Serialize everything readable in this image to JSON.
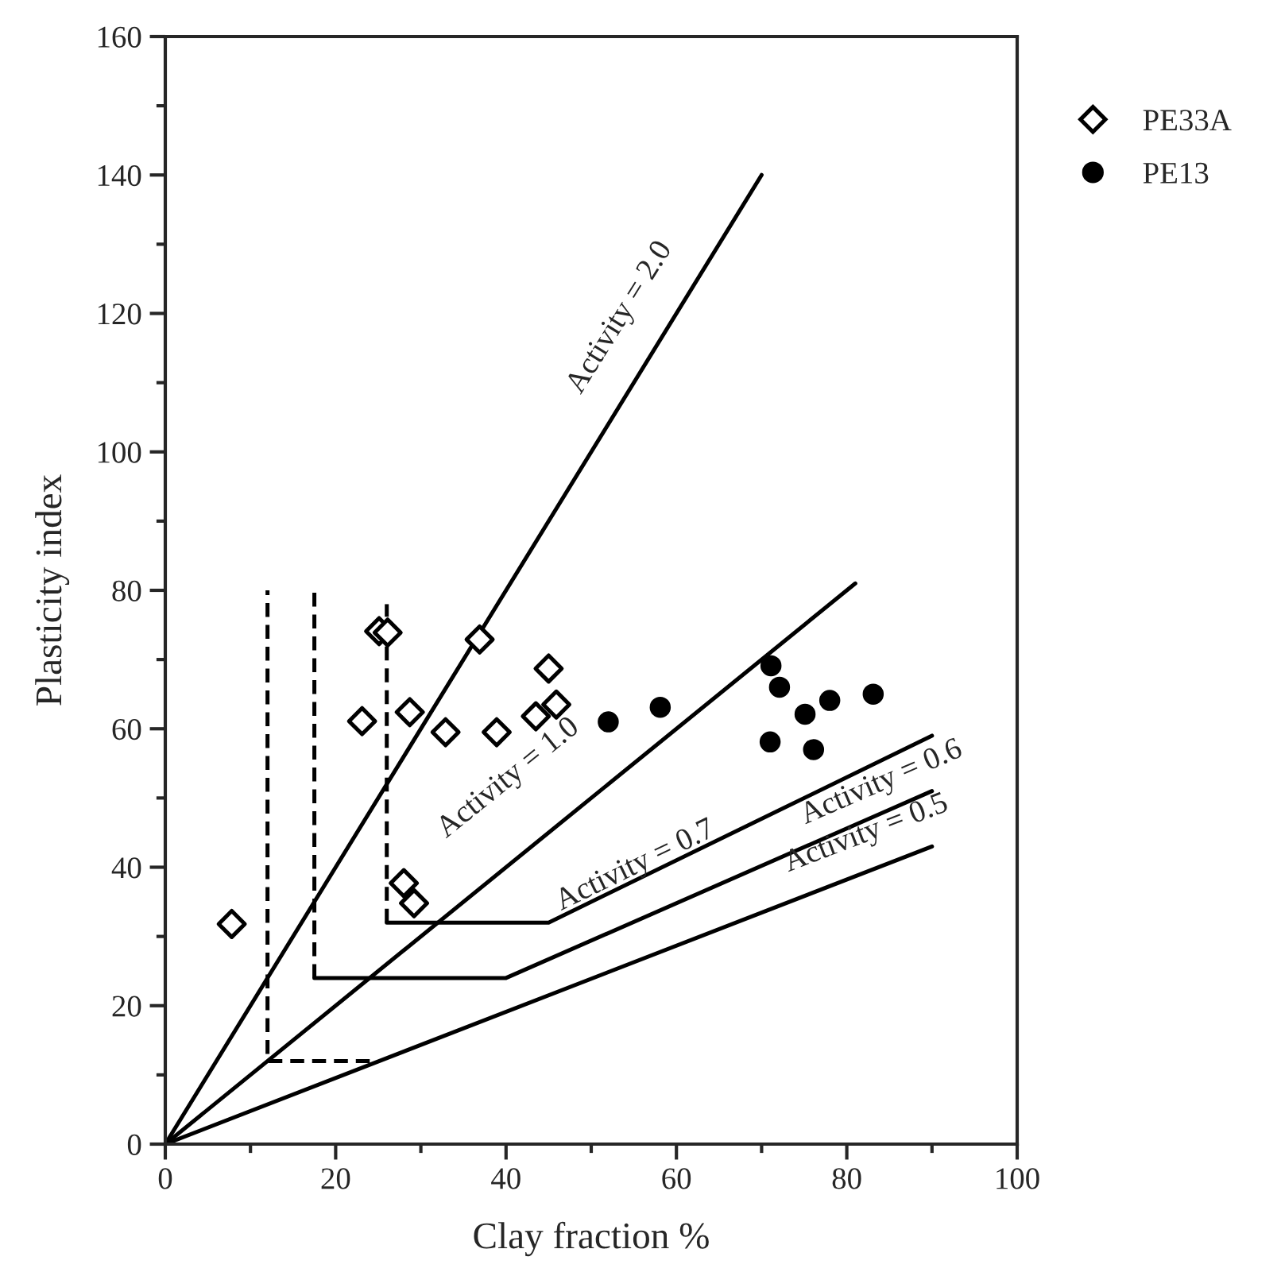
{
  "chart_data": {
    "type": "scatter",
    "xlabel": "Clay fraction %",
    "ylabel": "Plasticity index",
    "xlim": [
      0,
      100
    ],
    "ylim": [
      0,
      160
    ],
    "xticks": [
      0,
      20,
      40,
      60,
      80,
      100
    ],
    "yticks": [
      0,
      20,
      40,
      60,
      80,
      100,
      120,
      140,
      160
    ],
    "grid": false,
    "legend": "top right",
    "series": [
      {
        "name": "PE33A",
        "marker": "diamond",
        "color": "#000000",
        "x": [
          7.8,
          23.1,
          25.1,
          26.1,
          28.7,
          32.9,
          36.9,
          38.9,
          43.5,
          45.0,
          45.9,
          28.0,
          29.2
        ],
        "values": [
          31.8,
          61.1,
          74.1,
          73.9,
          62.4,
          59.5,
          72.9,
          59.5,
          61.8,
          68.7,
          63.5,
          37.7,
          34.8
        ]
      },
      {
        "name": "PE13",
        "marker": "circle",
        "color": "#000000",
        "x": [
          52.0,
          58.1,
          71.1,
          72.1,
          75.1,
          78.0,
          83.1,
          71.0,
          76.1
        ],
        "values": [
          61.0,
          63.1,
          69.1,
          66.0,
          62.1,
          64.1,
          65.0,
          58.1,
          57.0
        ]
      },
      {
        "type": "line",
        "color": "#000000",
        "line_style": "solid",
        "x": [
          0,
          70
        ],
        "values": [
          0,
          140
        ]
      },
      {
        "type": "line",
        "color": "#000000",
        "line_style": "solid",
        "x": [
          0,
          81
        ],
        "values": [
          0,
          81
        ]
      },
      {
        "type": "line",
        "color": "#000000",
        "line_style": "solid",
        "x": [
          26,
          45,
          90
        ],
        "values": [
          32,
          32,
          59
        ]
      },
      {
        "type": "line",
        "color": "#000000",
        "line_style": "solid",
        "x": [
          17.5,
          40,
          90
        ],
        "values": [
          24,
          24,
          51
        ]
      },
      {
        "type": "line",
        "color": "#000000",
        "line_style": "solid",
        "x": [
          0,
          90
        ],
        "values": [
          0,
          43
        ]
      },
      {
        "type": "line",
        "color": "#000000",
        "line_style": "dashed",
        "x": [
          24,
          12,
          12
        ],
        "values": [
          12,
          12,
          80
        ]
      },
      {
        "type": "line",
        "color": "#000000",
        "line_style": "dashed",
        "x": [
          17.5,
          17.5
        ],
        "values": [
          24,
          80
        ]
      },
      {
        "type": "line",
        "color": "#000000",
        "line_style": "dashed",
        "x": [
          26,
          26
        ],
        "values": [
          32,
          78
        ]
      }
    ],
    "annotations": [
      "Activity = 2.0",
      "Activity = 1.0",
      "Activity = 0.7",
      "Activity = 0.6",
      "Activity = 0.5"
    ]
  }
}
